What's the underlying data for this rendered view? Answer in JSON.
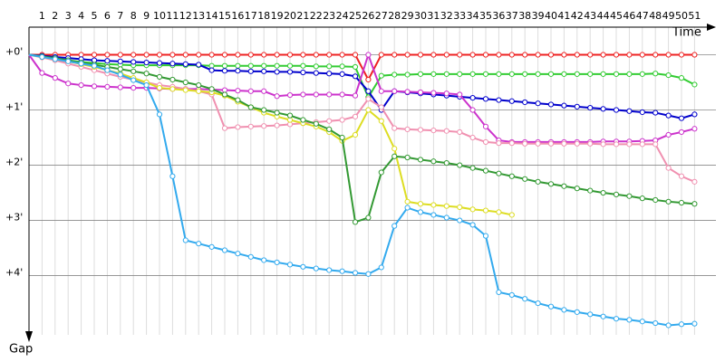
{
  "chart_data": {
    "type": "line",
    "x_label": "Time",
    "y_label": "Gap",
    "categories": [
      null,
      "1",
      "2",
      "3",
      "4",
      "5",
      "6",
      "7",
      "8",
      "9",
      "10",
      "11",
      "12",
      "13",
      "14",
      "15",
      "16",
      "17",
      "18",
      "19",
      "20",
      "21",
      "22",
      "23",
      "24",
      "25",
      "26",
      "27",
      "28",
      "29",
      "30",
      "31",
      "32",
      "33",
      "34",
      "35",
      "36",
      "37",
      "38",
      "39",
      "40",
      "41",
      "42",
      "43",
      "44",
      "45",
      "46",
      "47",
      "48",
      "49",
      "50",
      "51"
    ],
    "ylim": [
      -0.5,
      5.4
    ],
    "yticks": [
      {
        "value": 0,
        "label": "+0'"
      },
      {
        "value": 1,
        "label": "+1'"
      },
      {
        "value": 2,
        "label": "+2'"
      },
      {
        "value": 3,
        "label": "+3'"
      },
      {
        "value": 4,
        "label": "+4'"
      }
    ],
    "grid": true,
    "series": [
      {
        "color": "#ee2222",
        "values": [
          0,
          0,
          0,
          0,
          0,
          0,
          0,
          0,
          0,
          0,
          0,
          0,
          0,
          0,
          0,
          0,
          0,
          0,
          0,
          0,
          0,
          0,
          0,
          0,
          0,
          0,
          0.45,
          0,
          0,
          0,
          0,
          0,
          0,
          0,
          0,
          0,
          0,
          0,
          0,
          0,
          0,
          0,
          0,
          0,
          0,
          0,
          0,
          0,
          0,
          0,
          0,
          0
        ]
      },
      {
        "color": "#33cc33",
        "values": [
          0,
          0.03,
          0.06,
          0.1,
          0.13,
          0.15,
          0.17,
          0.18,
          0.19,
          0.19,
          0.19,
          0.19,
          0.19,
          0.19,
          0.2,
          0.2,
          0.2,
          0.2,
          0.2,
          0.2,
          0.2,
          0.2,
          0.21,
          0.21,
          0.21,
          0.22,
          0.77,
          0.38,
          0.36,
          0.36,
          0.35,
          0.35,
          0.35,
          0.35,
          0.35,
          0.35,
          0.35,
          0.35,
          0.35,
          0.35,
          0.35,
          0.35,
          0.35,
          0.35,
          0.35,
          0.35,
          0.35,
          0.35,
          0.34,
          0.37,
          0.42,
          0.54
        ]
      },
      {
        "color": "#0000cc",
        "values": [
          0,
          0.02,
          0.04,
          0.06,
          0.08,
          0.1,
          0.11,
          0.12,
          0.13,
          0.14,
          0.15,
          0.16,
          0.17,
          0.18,
          0.28,
          0.29,
          0.29,
          0.3,
          0.3,
          0.31,
          0.31,
          0.32,
          0.33,
          0.34,
          0.35,
          0.39,
          0.66,
          1.0,
          0.66,
          0.68,
          0.7,
          0.72,
          0.74,
          0.76,
          0.78,
          0.8,
          0.82,
          0.84,
          0.86,
          0.88,
          0.9,
          0.92,
          0.94,
          0.96,
          0.98,
          1.0,
          1.02,
          1.04,
          1.05,
          1.1,
          1.15,
          1.08
        ]
      },
      {
        "color": "#cc33cc",
        "values": [
          0,
          0.33,
          0.42,
          0.52,
          0.55,
          0.57,
          0.58,
          0.59,
          0.6,
          0.6,
          0.61,
          0.62,
          0.62,
          0.62,
          0.63,
          0.64,
          0.65,
          0.66,
          0.66,
          0.75,
          0.73,
          0.72,
          0.72,
          0.72,
          0.72,
          0.74,
          0,
          0.66,
          0.66,
          0.67,
          0.68,
          0.69,
          0.7,
          0.72,
          1.0,
          1.3,
          1.55,
          1.58,
          1.58,
          1.58,
          1.58,
          1.58,
          1.58,
          1.58,
          1.57,
          1.57,
          1.57,
          1.56,
          1.55,
          1.45,
          1.4,
          1.34
        ]
      },
      {
        "color": "#f090b0",
        "values": [
          0,
          0.05,
          0.1,
          0.16,
          0.22,
          0.28,
          0.34,
          0.4,
          0.45,
          0.5,
          0.55,
          0.58,
          0.62,
          0.66,
          0.72,
          1.33,
          1.31,
          1.3,
          1.29,
          1.28,
          1.26,
          1.24,
          1.22,
          1.2,
          1.18,
          1.12,
          0.8,
          0.95,
          1.33,
          1.35,
          1.36,
          1.37,
          1.38,
          1.4,
          1.5,
          1.58,
          1.6,
          1.6,
          1.61,
          1.61,
          1.61,
          1.61,
          1.61,
          1.61,
          1.62,
          1.62,
          1.62,
          1.62,
          1.62,
          2.05,
          2.2,
          2.3
        ]
      },
      {
        "color": "#dddd22",
        "values": [
          0,
          0.04,
          0.08,
          0.12,
          0.17,
          0.22,
          0.28,
          0.34,
          0.42,
          0.5,
          0.6,
          0.62,
          0.64,
          0.66,
          0.68,
          0.74,
          0.85,
          0.95,
          1.05,
          1.12,
          1.18,
          1.24,
          1.3,
          1.4,
          1.56,
          1.45,
          1.0,
          1.2,
          1.7,
          2.66,
          2.7,
          2.72,
          2.74,
          2.76,
          2.8,
          2.82,
          2.85,
          2.9,
          null,
          null,
          null,
          null,
          null,
          null,
          null,
          null,
          null,
          null,
          null,
          null,
          null,
          null
        ]
      },
      {
        "color": "#339933",
        "values": [
          0,
          0.03,
          0.06,
          0.1,
          0.14,
          0.18,
          0.22,
          0.26,
          0.3,
          0.34,
          0.4,
          0.45,
          0.5,
          0.55,
          0.62,
          0.72,
          0.82,
          0.95,
          1.0,
          1.05,
          1.1,
          1.18,
          1.25,
          1.35,
          1.5,
          3.03,
          2.95,
          2.13,
          1.84,
          1.86,
          1.9,
          1.93,
          1.96,
          2.0,
          2.05,
          2.1,
          2.15,
          2.2,
          2.25,
          2.3,
          2.34,
          2.38,
          2.42,
          2.46,
          2.5,
          2.53,
          2.56,
          2.6,
          2.63,
          2.66,
          2.68,
          2.7
        ]
      },
      {
        "color": "#33aaee",
        "values": [
          0,
          0.04,
          0.08,
          0.12,
          0.16,
          0.2,
          0.28,
          0.36,
          0.46,
          0.55,
          1.08,
          2.2,
          3.36,
          3.42,
          3.48,
          3.54,
          3.6,
          3.66,
          3.72,
          3.76,
          3.8,
          3.84,
          3.87,
          3.9,
          3.92,
          3.95,
          3.97,
          3.85,
          3.1,
          2.77,
          2.85,
          2.9,
          2.95,
          3.0,
          3.08,
          3.28,
          4.3,
          4.35,
          4.42,
          4.5,
          4.56,
          4.62,
          4.66,
          4.7,
          4.74,
          4.78,
          4.8,
          4.83,
          4.86,
          4.9,
          4.88,
          4.87
        ]
      }
    ]
  }
}
